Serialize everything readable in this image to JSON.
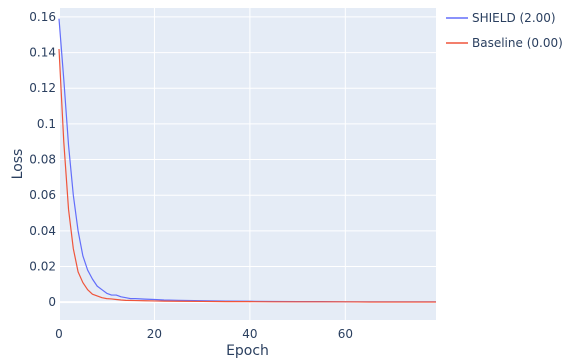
{
  "chart_data": {
    "type": "line",
    "title": "",
    "xlabel": "Epoch",
    "ylabel": "Loss",
    "xlim": [
      0,
      79
    ],
    "ylim": [
      -0.01,
      0.165
    ],
    "xticks": [
      0,
      20,
      40,
      60
    ],
    "yticks": [
      0,
      0.02,
      0.04,
      0.06,
      0.08,
      0.1,
      0.12,
      0.14,
      0.16
    ],
    "ytick_labels": [
      "0",
      "0.02",
      "0.04",
      "0.06",
      "0.08",
      "0.1",
      "0.12",
      "0.14",
      "0.16"
    ],
    "grid": true,
    "legend_position": "top-right",
    "plot_background": "#e5ecf6",
    "series": [
      {
        "name": "SHIELD (2.00)",
        "color": "#636efa",
        "x": [
          0,
          1,
          2,
          3,
          4,
          5,
          6,
          7,
          8,
          9,
          10,
          11,
          12,
          13,
          14,
          15,
          16,
          18,
          20,
          22,
          25,
          30,
          35,
          40,
          45,
          50,
          55,
          60,
          65,
          70,
          79
        ],
        "y": [
          0.159,
          0.125,
          0.088,
          0.06,
          0.04,
          0.026,
          0.018,
          0.013,
          0.009,
          0.007,
          0.005,
          0.004,
          0.004,
          0.003,
          0.0025,
          0.002,
          0.002,
          0.0017,
          0.0015,
          0.0012,
          0.001,
          0.0008,
          0.0006,
          0.0005,
          0.0004,
          0.0003,
          0.0003,
          0.0002,
          0.0002,
          0.0002,
          0.0002
        ]
      },
      {
        "name": "Baseline (0.00)",
        "color": "#ef553b",
        "x": [
          0,
          1,
          2,
          3,
          4,
          5,
          6,
          7,
          8,
          9,
          10,
          11,
          12,
          13,
          14,
          16,
          18,
          20,
          22,
          25,
          30,
          35,
          40,
          45,
          50,
          55,
          60,
          65,
          70,
          79
        ],
        "y": [
          0.142,
          0.09,
          0.052,
          0.03,
          0.017,
          0.011,
          0.007,
          0.0045,
          0.0035,
          0.0025,
          0.002,
          0.0018,
          0.0015,
          0.0012,
          0.001,
          0.0009,
          0.0008,
          0.0007,
          0.0006,
          0.0005,
          0.0004,
          0.0003,
          0.0003,
          0.0002,
          0.0002,
          0.0002,
          0.0002,
          0.0001,
          0.0001,
          0.0001
        ]
      }
    ]
  }
}
